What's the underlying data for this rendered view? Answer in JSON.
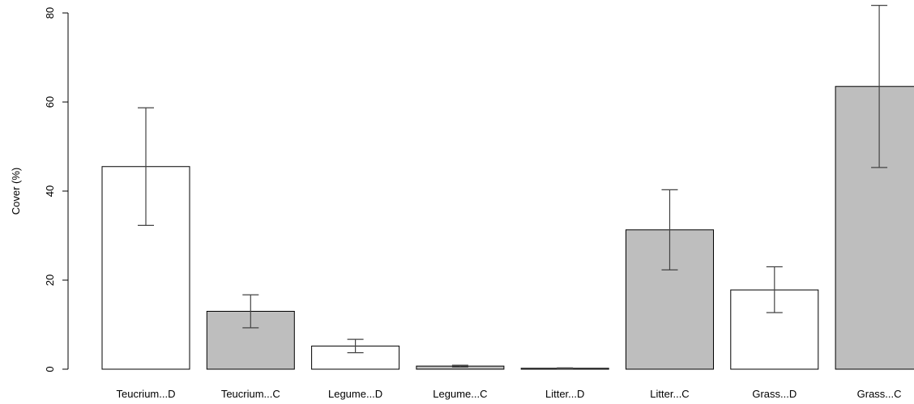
{
  "chart_data": {
    "type": "bar",
    "title": "",
    "xlabel": "",
    "ylabel": "Cover (%)",
    "ylim": [
      0,
      80
    ],
    "yticks": [
      0,
      20,
      40,
      60,
      80
    ],
    "grid": false,
    "legend": "none",
    "categories": [
      "Teucrium...D",
      "Teucrium...C",
      "Legume...D",
      "Legume...C",
      "Litter...D",
      "Litter...C",
      "Grass...D",
      "Grass...C"
    ],
    "values": [
      45.5,
      13.0,
      5.2,
      0.7,
      0.2,
      31.3,
      17.8,
      63.5
    ],
    "error_low": [
      32.3,
      9.3,
      3.7,
      0.5,
      0.1,
      22.3,
      12.7,
      45.3
    ],
    "error_high": [
      58.7,
      16.7,
      6.7,
      0.9,
      0.3,
      40.3,
      23.0,
      81.7
    ],
    "fill_colors": [
      "#ffffff",
      "#bebebe",
      "#ffffff",
      "#bebebe",
      "#ffffff",
      "#bebebe",
      "#ffffff",
      "#bebebe"
    ]
  }
}
